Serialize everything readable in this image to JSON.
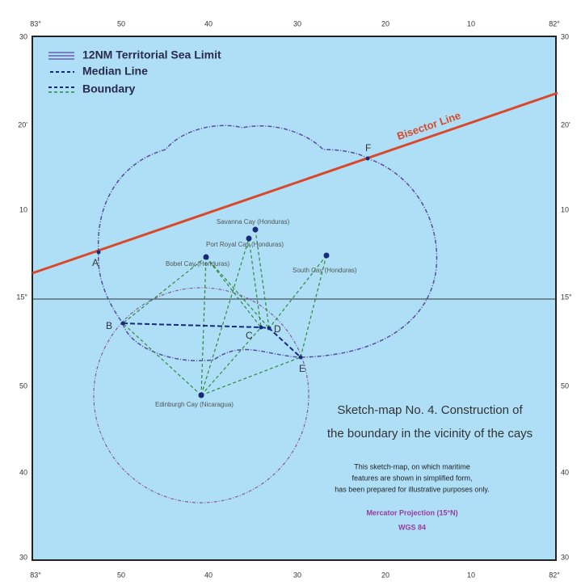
{
  "frame": {
    "top": [
      "83°",
      "50",
      "40",
      "30",
      "20",
      "10",
      "82°"
    ],
    "bottom": [
      "83°",
      "50",
      "40",
      "30",
      "20",
      "10",
      "82°"
    ],
    "left": [
      "30",
      "20'",
      "10",
      "15°",
      "50",
      "40",
      "30"
    ],
    "right": [
      "30",
      "20'",
      "10",
      "15°",
      "50",
      "40",
      "30"
    ]
  },
  "legend": [
    "12NM Territorial Sea Limit",
    "Median Line",
    "Boundary"
  ],
  "line_label": "Bisector Line",
  "points": [
    "A",
    "B",
    "C",
    "D",
    "E",
    "F"
  ],
  "cays": [
    "Savanna Cay (Honduras)",
    "Port Royal Cay (Honduras)",
    "Bobel Cay (Honduras)",
    "South Cay (Honduras)",
    "Edinburgh Cay (Nicaragua)"
  ],
  "title": [
    "Sketch-map No. 4. Construction of",
    "the boundary in the vicinity of the cays"
  ],
  "note": [
    "This sketch-map, on which maritime",
    "features are shown in simplified form,",
    "has been prepared for illustrative purposes only."
  ],
  "projection": [
    "Mercator Projection (15°N)",
    "WGS 84"
  ]
}
